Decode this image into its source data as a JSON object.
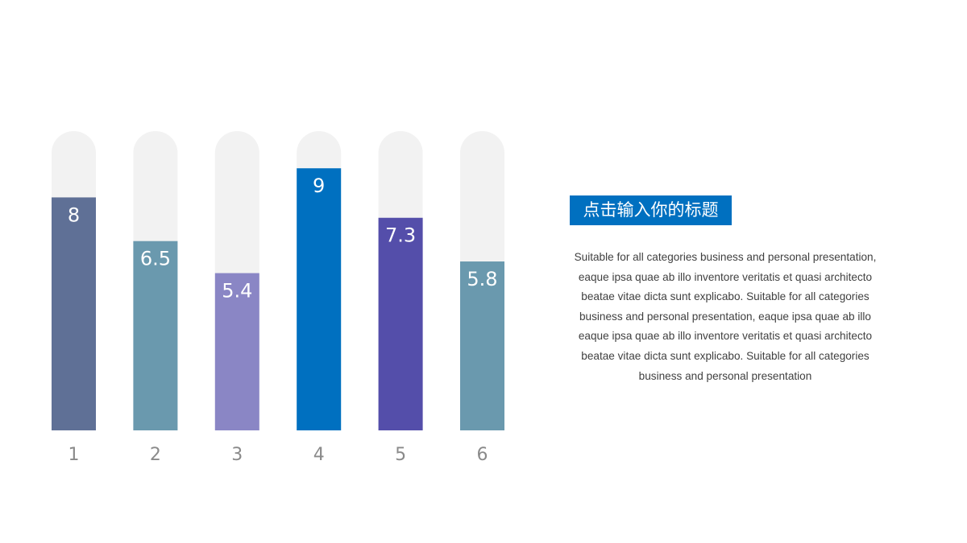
{
  "chart_data": {
    "type": "bar",
    "categories": [
      "1",
      "2",
      "3",
      "4",
      "5",
      "6"
    ],
    "values": [
      8,
      6.5,
      5.4,
      9,
      7.3,
      5.8
    ],
    "data_labels": [
      "8",
      "6.5",
      "5.4",
      "9",
      "7.3",
      "5.8"
    ],
    "colors": [
      "#5f7096",
      "#6a99ae",
      "#8a86c5",
      "#0070c0",
      "#544eaa",
      "#6a99ae"
    ],
    "track_color": "#f2f2f2",
    "ylim": [
      0,
      10
    ],
    "grid": false,
    "title": "",
    "xlabel": "",
    "ylabel": ""
  },
  "text_panel": {
    "title": "点击输入你的标题",
    "title_bg_color": "#0070c0",
    "body": "Suitable for all categories business and personal presentation, eaque ipsa quae ab illo inventore veritatis et quasi architecto beatae vitae dicta sunt explicabo. Suitable for all categories business and personal presentation, eaque ipsa quae ab illo eaque ipsa quae ab illo inventore veritatis et quasi architecto beatae vitae dicta sunt explicabo. Suitable for all categories business and personal presentation"
  }
}
